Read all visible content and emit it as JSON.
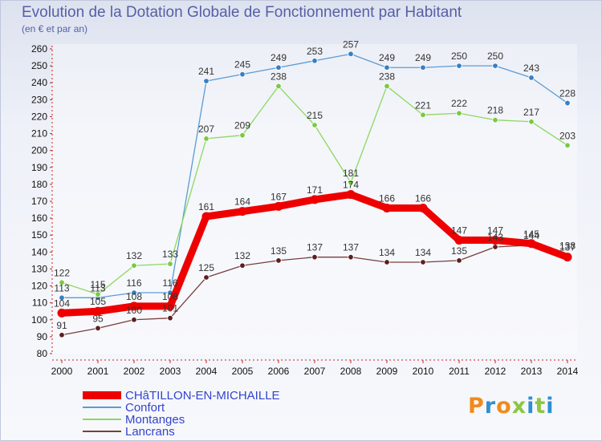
{
  "header": {
    "title": "Evolution de la Dotation Globale de Fonctionnement par Habitant",
    "subtitle": "(en € et par an)"
  },
  "logo": {
    "letters": [
      "P",
      "r",
      "o",
      "x",
      "i",
      "t",
      "i"
    ],
    "colors": [
      "#f08a1c",
      "#2f8fd0",
      "#f08a1c",
      "#8dc63f",
      "#2f8fd0",
      "#8dc63f",
      "#2f8fd0"
    ]
  },
  "chart_data": {
    "type": "line",
    "title": "Evolution de la Dotation Globale de Fonctionnement par Habitant",
    "subtitle": "(en € et par an)",
    "xlabel": "",
    "ylabel": "",
    "ylim": [
      80,
      260
    ],
    "ytick_step": 10,
    "grid": false,
    "legend_position": "bottom-left",
    "x": [
      2000,
      2001,
      2002,
      2003,
      2004,
      2005,
      2006,
      2007,
      2008,
      2009,
      2010,
      2011,
      2012,
      2013,
      2014
    ],
    "series": [
      {
        "name": "Confort",
        "color": "#5b9bd5",
        "point_color": "#3a7fc0",
        "values": [
          113,
          113,
          116,
          116,
          241,
          245,
          249,
          253,
          257,
          249,
          249,
          250,
          250,
          243,
          228
        ]
      },
      {
        "name": "Montanges",
        "color": "#8fd760",
        "point_color": "#7ac943",
        "values": [
          122,
          115,
          132,
          133,
          207,
          209,
          238,
          215,
          181,
          238,
          221,
          222,
          218,
          217,
          203
        ]
      },
      {
        "name": "Lancrans",
        "color": "#7a3e3e",
        "point_color": "#5c1f1f",
        "values": [
          91,
          95,
          100,
          101,
          125,
          132,
          135,
          137,
          137,
          134,
          134,
          135,
          143,
          144,
          138
        ]
      },
      {
        "name": "CHâTILLON-EN-MICHAILLE",
        "color": "#ee0000",
        "point_color": "#ee0000",
        "values": [
          104,
          105,
          108,
          108,
          161,
          164,
          167,
          171,
          174,
          166,
          166,
          147,
          147,
          145,
          137
        ]
      }
    ],
    "legend_order": [
      "CHâTILLON-EN-MICHAILLE",
      "Confort",
      "Montanges",
      "Lancrans"
    ],
    "legend_text_color": "#3344cc"
  }
}
